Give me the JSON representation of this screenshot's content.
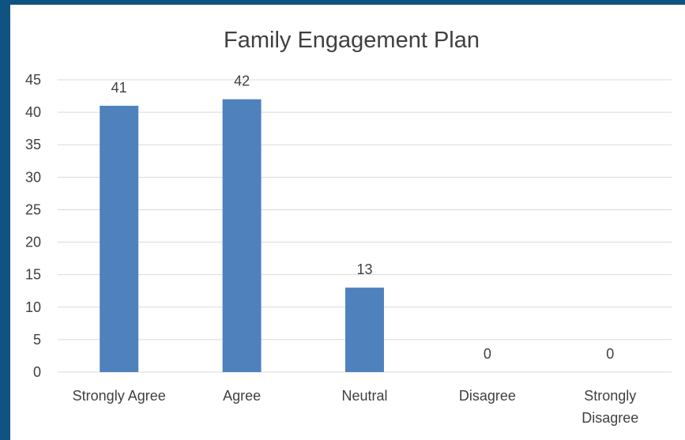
{
  "chart_data": {
    "type": "bar",
    "title": "Family Engagement Plan",
    "categories": [
      [
        "Strongly Agree"
      ],
      [
        "Agree"
      ],
      [
        "Neutral"
      ],
      [
        "Disagree"
      ],
      [
        "Strongly",
        "Disagree"
      ]
    ],
    "values": [
      41,
      42,
      13,
      0,
      0
    ],
    "data_labels": [
      "41",
      "42",
      "13",
      "0",
      "0"
    ],
    "y_ticks": [
      "0",
      "5",
      "10",
      "15",
      "20",
      "25",
      "30",
      "35",
      "40",
      "45"
    ],
    "ylim": [
      0,
      45
    ],
    "grid": true,
    "legend": "none",
    "colors": {
      "bar": "#4f81bd",
      "frame": "#0f5382",
      "background": "#ffffff",
      "gridline": "#d9d9d9",
      "text": "#404040"
    }
  }
}
